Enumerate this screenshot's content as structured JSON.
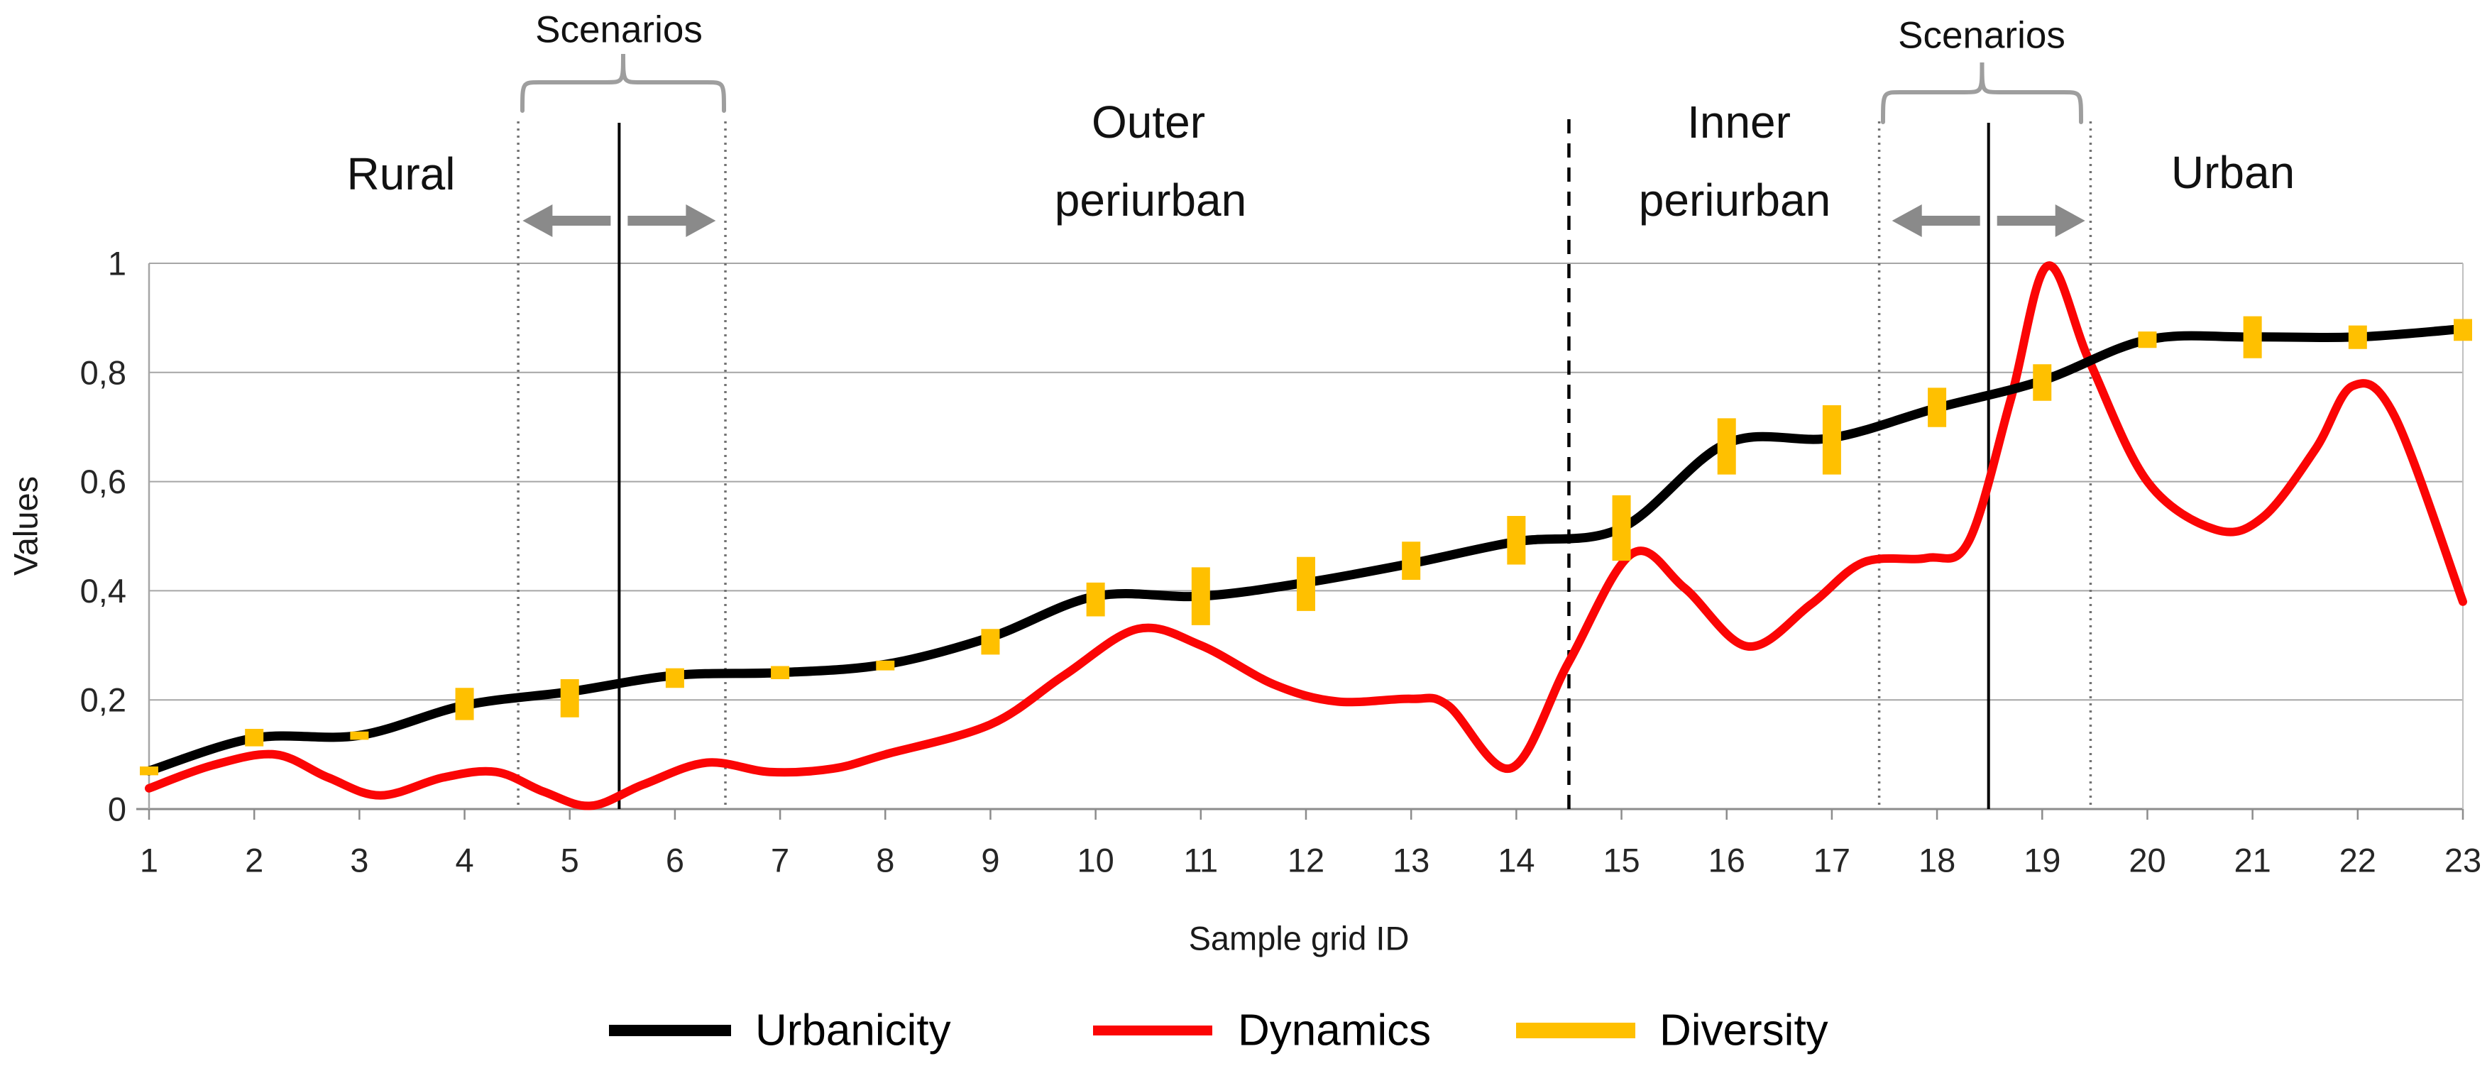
{
  "chart_data": {
    "type": "line",
    "title": "",
    "xlabel": "Sample grid ID",
    "ylabel": "Values",
    "xlim": [
      1,
      23
    ],
    "ylim": [
      0,
      1
    ],
    "grid": "horizontal",
    "x_tick_labels": [
      "1",
      "2",
      "3",
      "4",
      "5",
      "6",
      "7",
      "8",
      "9",
      "10",
      "11",
      "12",
      "13",
      "14",
      "15",
      "16",
      "17",
      "18",
      "19",
      "20",
      "21",
      "22",
      "23"
    ],
    "y_tick_labels": [
      "0",
      "0,2",
      "0,4",
      "0,6",
      "0,8",
      "1"
    ],
    "y_tick_values": [
      0,
      0.2,
      0.4,
      0.6,
      0.8,
      1
    ],
    "legend": {
      "position": "bottom",
      "items": [
        {
          "label": "Urbanicity",
          "color": "#000000",
          "swatch": "line"
        },
        {
          "label": "Dynamics",
          "color": "#FB0505",
          "swatch": "line"
        },
        {
          "label": "Diversity",
          "color": "#FFC000",
          "swatch": "thick-line"
        }
      ]
    },
    "series": [
      {
        "name": "Urbanicity",
        "type": "line",
        "color": "#000000",
        "x": [
          1,
          2,
          3,
          4,
          5,
          6,
          7,
          8,
          9,
          10,
          11,
          12,
          13,
          14,
          15,
          16,
          17,
          18,
          19,
          20,
          21,
          22,
          23
        ],
        "values": [
          0.07,
          0.13,
          0.135,
          0.19,
          0.215,
          0.245,
          0.25,
          0.265,
          0.315,
          0.39,
          0.39,
          0.415,
          0.45,
          0.49,
          0.515,
          0.67,
          0.68,
          0.735,
          0.785,
          0.86,
          0.865,
          0.865,
          0.88
        ]
      },
      {
        "name": "Dynamics",
        "type": "line",
        "color": "#FB0505",
        "x": [
          1,
          2,
          3,
          4,
          5,
          6,
          7,
          8,
          9,
          10,
          11,
          12,
          13,
          14,
          15,
          16,
          17,
          18,
          19,
          20,
          21,
          22,
          23
        ],
        "values": [
          0.04,
          0.095,
          0.03,
          0.065,
          0.01,
          0.08,
          0.07,
          0.1,
          0.155,
          0.315,
          0.3,
          0.21,
          0.2,
          0.08,
          0.465,
          0.31,
          0.44,
          0.46,
          1.0,
          0.6,
          0.53,
          0.775,
          0.38
        ],
        "curve_keypoints": [
          [
            1,
            0.038
          ],
          [
            1.6,
            0.08
          ],
          [
            2.2,
            0.1
          ],
          [
            2.7,
            0.058
          ],
          [
            3.2,
            0.025
          ],
          [
            3.8,
            0.058
          ],
          [
            4.3,
            0.068
          ],
          [
            4.75,
            0.032
          ],
          [
            5.2,
            0.006
          ],
          [
            5.7,
            0.045
          ],
          [
            6.3,
            0.085
          ],
          [
            6.9,
            0.068
          ],
          [
            7.5,
            0.074
          ],
          [
            8,
            0.1
          ],
          [
            9,
            0.155
          ],
          [
            9.7,
            0.245
          ],
          [
            10.4,
            0.33
          ],
          [
            11,
            0.3
          ],
          [
            11.7,
            0.228
          ],
          [
            12.3,
            0.197
          ],
          [
            13,
            0.202
          ],
          [
            13.35,
            0.19
          ],
          [
            13.95,
            0.075
          ],
          [
            14.5,
            0.27
          ],
          [
            15.1,
            0.468
          ],
          [
            15.6,
            0.405
          ],
          [
            16.2,
            0.298
          ],
          [
            16.8,
            0.375
          ],
          [
            17.3,
            0.452
          ],
          [
            17.9,
            0.46
          ],
          [
            18.3,
            0.49
          ],
          [
            18.7,
            0.75
          ],
          [
            19.05,
            0.995
          ],
          [
            19.45,
            0.82
          ],
          [
            20,
            0.6
          ],
          [
            20.65,
            0.512
          ],
          [
            21.1,
            0.535
          ],
          [
            21.6,
            0.66
          ],
          [
            21.95,
            0.775
          ],
          [
            22.35,
            0.72
          ],
          [
            23,
            0.38
          ]
        ]
      },
      {
        "name": "Diversity",
        "type": "vertical-range-bars",
        "color": "#FFC000",
        "bars": [
          {
            "x": 1,
            "lo": 0.062,
            "hi": 0.078
          },
          {
            "x": 2,
            "lo": 0.115,
            "hi": 0.147
          },
          {
            "x": 3,
            "lo": 0.127,
            "hi": 0.142
          },
          {
            "x": 4,
            "lo": 0.163,
            "hi": 0.222
          },
          {
            "x": 5,
            "lo": 0.168,
            "hi": 0.238
          },
          {
            "x": 6,
            "lo": 0.222,
            "hi": 0.258
          },
          {
            "x": 7,
            "lo": 0.238,
            "hi": 0.262
          },
          {
            "x": 8,
            "lo": 0.254,
            "hi": 0.272
          },
          {
            "x": 9,
            "lo": 0.283,
            "hi": 0.33
          },
          {
            "x": 10,
            "lo": 0.353,
            "hi": 0.415
          },
          {
            "x": 11,
            "lo": 0.337,
            "hi": 0.443
          },
          {
            "x": 12,
            "lo": 0.363,
            "hi": 0.462
          },
          {
            "x": 13,
            "lo": 0.42,
            "hi": 0.49
          },
          {
            "x": 14,
            "lo": 0.448,
            "hi": 0.537
          },
          {
            "x": 15,
            "lo": 0.455,
            "hi": 0.575
          },
          {
            "x": 16,
            "lo": 0.613,
            "hi": 0.716
          },
          {
            "x": 17,
            "lo": 0.613,
            "hi": 0.74
          },
          {
            "x": 18,
            "lo": 0.7,
            "hi": 0.772
          },
          {
            "x": 19,
            "lo": 0.748,
            "hi": 0.815
          },
          {
            "x": 20,
            "lo": 0.845,
            "hi": 0.875
          },
          {
            "x": 21,
            "lo": 0.826,
            "hi": 0.903
          },
          {
            "x": 22,
            "lo": 0.843,
            "hi": 0.886
          },
          {
            "x": 23,
            "lo": 0.858,
            "hi": 0.898
          }
        ]
      }
    ],
    "zones": [
      {
        "label": "Rural",
        "lines": [
          "Rural"
        ]
      },
      {
        "label": "Outer periurban",
        "lines": [
          "Outer",
          "periurban"
        ]
      },
      {
        "label": "Inner periurban",
        "lines": [
          "Inner",
          "periurban"
        ]
      },
      {
        "label": "Urban",
        "lines": [
          "Urban"
        ]
      }
    ],
    "zone_boundary": {
      "style": "dashed",
      "x": 14.5
    },
    "scenario_windows": [
      {
        "label": "Scenarios",
        "from": 4.51,
        "center": 5.47,
        "to": 6.48
      },
      {
        "label": "Scenarios",
        "from": 17.45,
        "center": 18.49,
        "to": 19.46
      }
    ],
    "annotation_colors": {
      "brace": "#9e9e9e",
      "arrows": "#8a8a8a",
      "dotted_line": "#737373",
      "solid_line": "#000000",
      "dashed_line": "#000000",
      "gridline": "#a6a6a6"
    }
  }
}
